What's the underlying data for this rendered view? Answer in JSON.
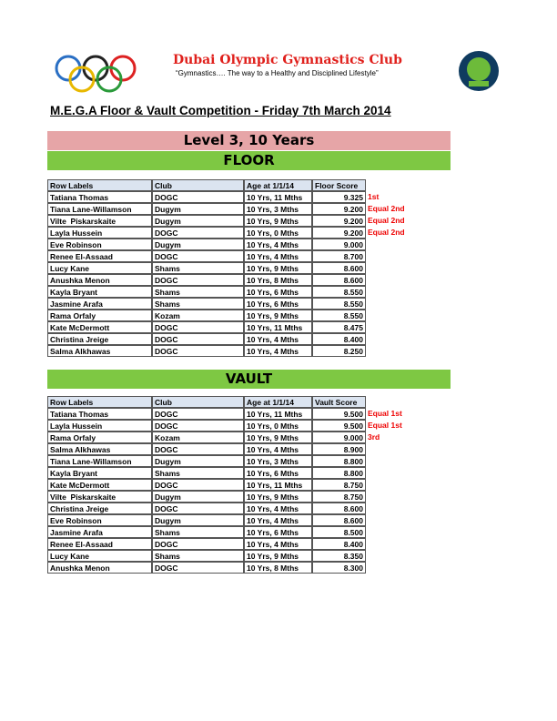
{
  "header": {
    "title": "Dubai Olympic Gymnastics Club",
    "tagline": "“Gymnastics…. The way to a Healthy and Disciplined Lifestyle”"
  },
  "competition_title": "M.E.G.A Floor & Vault Competition - Friday 7th March 2014",
  "level": "Level 3, 10 Years",
  "sections": [
    {
      "name": "FLOOR",
      "columns": [
        "Row Labels",
        "Club",
        "Age at 1/1/14",
        "Floor Score"
      ],
      "rows": [
        {
          "name": "Tatiana Thomas",
          "club": "DOGC",
          "age": "10 Yrs, 11 Mths",
          "score": "9.325",
          "note": "1st"
        },
        {
          "name": "Tiana Lane-Willamson",
          "club": "Dugym",
          "age": "10 Yrs, 3 Mths",
          "score": "9.200",
          "note": "Equal 2nd"
        },
        {
          "name": "Vilte  Piskarskaite",
          "club": "Dugym",
          "age": "10 Yrs, 9 Mths",
          "score": "9.200",
          "note": "Equal 2nd"
        },
        {
          "name": "Layla Hussein",
          "club": "DOGC",
          "age": "10 Yrs, 0 Mths",
          "score": "9.200",
          "note": "Equal 2nd"
        },
        {
          "name": "Eve Robinson",
          "club": "Dugym",
          "age": "10 Yrs, 4 Mths",
          "score": "9.000"
        },
        {
          "name": "Renee El-Assaad",
          "club": "DOGC",
          "age": "10 Yrs, 4 Mths",
          "score": "8.700"
        },
        {
          "name": "Lucy Kane",
          "club": "Shams",
          "age": "10 Yrs, 9 Mths",
          "score": "8.600"
        },
        {
          "name": "Anushka Menon",
          "club": "DOGC",
          "age": "10 Yrs, 8 Mths",
          "score": "8.600"
        },
        {
          "name": "Kayla Bryant",
          "club": "Shams",
          "age": "10 Yrs, 6 Mths",
          "score": "8.550"
        },
        {
          "name": "Jasmine Arafa",
          "club": "Shams",
          "age": "10 Yrs, 6 Mths",
          "score": "8.550"
        },
        {
          "name": "Rama Orfaly",
          "club": "Kozam",
          "age": "10 Yrs, 9 Mths",
          "score": "8.550"
        },
        {
          "name": "Kate McDermott",
          "club": "DOGC",
          "age": "10 Yrs, 11 Mths",
          "score": "8.475"
        },
        {
          "name": "Christina Jreige",
          "club": "DOGC",
          "age": "10 Yrs, 4 Mths",
          "score": "8.400"
        },
        {
          "name": "Salma Alkhawas",
          "club": "DOGC",
          "age": "10 Yrs, 4 Mths",
          "score": "8.250"
        }
      ]
    },
    {
      "name": "VAULT",
      "columns": [
        "Row Labels",
        "Club",
        "Age at 1/1/14",
        "Vault Score"
      ],
      "rows": [
        {
          "name": "Tatiana Thomas",
          "club": "DOGC",
          "age": "10 Yrs, 11 Mths",
          "score": "9.500",
          "note": "Equal 1st"
        },
        {
          "name": "Layla Hussein",
          "club": "DOGC",
          "age": "10 Yrs, 0 Mths",
          "score": "9.500",
          "note": "Equal 1st"
        },
        {
          "name": "Rama Orfaly",
          "club": "Kozam",
          "age": "10 Yrs, 9 Mths",
          "score": "9.000",
          "note": "3rd"
        },
        {
          "name": "Salma Alkhawas",
          "club": "DOGC",
          "age": "10 Yrs, 4 Mths",
          "score": "8.900"
        },
        {
          "name": "Tiana Lane-Willamson",
          "club": "Dugym",
          "age": "10 Yrs, 3 Mths",
          "score": "8.800"
        },
        {
          "name": "Kayla Bryant",
          "club": "Shams",
          "age": "10 Yrs, 6 Mths",
          "score": "8.800"
        },
        {
          "name": "Kate McDermott",
          "club": "DOGC",
          "age": "10 Yrs, 11 Mths",
          "score": "8.750"
        },
        {
          "name": "Vilte  Piskarskaite",
          "club": "Dugym",
          "age": "10 Yrs, 9 Mths",
          "score": "8.750"
        },
        {
          "name": "Christina Jreige",
          "club": "DOGC",
          "age": "10 Yrs, 4 Mths",
          "score": "8.600"
        },
        {
          "name": "Eve Robinson",
          "club": "Dugym",
          "age": "10 Yrs, 4 Mths",
          "score": "8.600"
        },
        {
          "name": "Jasmine Arafa",
          "club": "Shams",
          "age": "10 Yrs, 6 Mths",
          "score": "8.500"
        },
        {
          "name": "Renee El-Assaad",
          "club": "DOGC",
          "age": "10 Yrs, 4 Mths",
          "score": "8.400"
        },
        {
          "name": "Lucy Kane",
          "club": "Shams",
          "age": "10 Yrs, 9 Mths",
          "score": "8.350"
        },
        {
          "name": "Anushka Menon",
          "club": "DOGC",
          "age": "10 Yrs, 8 Mths",
          "score": "8.300"
        }
      ]
    }
  ]
}
